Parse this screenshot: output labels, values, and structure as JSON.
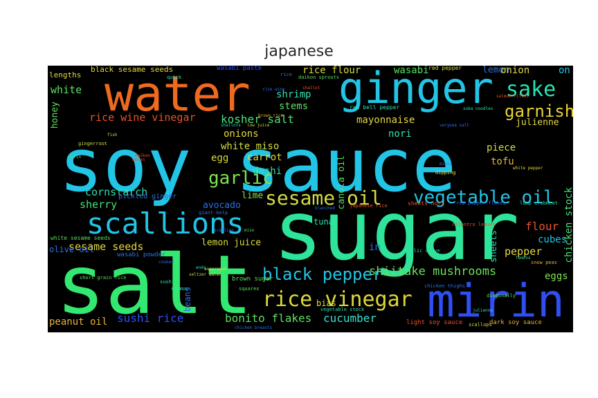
{
  "title": "japanese",
  "words": [
    {
      "text": "soy sauce",
      "color": "#22c5e6"
    },
    {
      "text": "sugar",
      "color": "#2ee39a"
    },
    {
      "text": "salt",
      "color": "#33e870"
    },
    {
      "text": "water",
      "color": "#ee6a1f"
    },
    {
      "text": "ginger",
      "color": "#22c5e6"
    },
    {
      "text": "mirin",
      "color": "#2f4ff2"
    },
    {
      "text": "scallions",
      "color": "#22c5e6"
    },
    {
      "text": "rice vinegar",
      "color": "#ddd93a"
    },
    {
      "text": "sesame oil",
      "color": "#d5dc3f"
    },
    {
      "text": "vegetable oil",
      "color": "#22c5e6"
    },
    {
      "text": "garlic",
      "color": "#7fe44f"
    },
    {
      "text": "black pepper",
      "color": "#22c5e6"
    },
    {
      "text": "sake",
      "color": "#25e6b2"
    },
    {
      "text": "garnish",
      "color": "#e8d437"
    },
    {
      "text": "shiitake mushrooms",
      "color": "#6de05a"
    },
    {
      "text": "bonito flakes",
      "color": "#5fe05e"
    },
    {
      "text": "cucumber",
      "color": "#36e1cf"
    },
    {
      "text": "sushi rice",
      "color": "#2f4ff2"
    },
    {
      "text": "rice wine vinegar",
      "color": "#e8542a"
    },
    {
      "text": "kosher salt",
      "color": "#4de07a"
    },
    {
      "text": "sesame seeds",
      "color": "#e6d93f"
    },
    {
      "text": "cornstarch",
      "color": "#2fe0b2"
    },
    {
      "text": "sherry",
      "color": "#4de07a"
    },
    {
      "text": "lemon juice",
      "color": "#d8dc3c"
    },
    {
      "text": "peanut oil",
      "color": "#e8b43a"
    },
    {
      "text": "avocado",
      "color": "#2f70e6"
    },
    {
      "text": "white miso",
      "color": "#d5dc3f"
    },
    {
      "text": "mayonnaise",
      "color": "#e6d93f"
    },
    {
      "text": "rice flour",
      "color": "#d5dc3f"
    },
    {
      "text": "wasabi",
      "color": "#59e05e"
    },
    {
      "text": "shrimp",
      "color": "#2fe0b2"
    },
    {
      "text": "stems",
      "color": "#5fe05e"
    },
    {
      "text": "white",
      "color": "#59e05e"
    },
    {
      "text": "honey",
      "color": "#5fe05e"
    },
    {
      "text": "onions",
      "color": "#e6d93f"
    },
    {
      "text": "carrot",
      "color": "#e6d93f"
    },
    {
      "text": "egg",
      "color": "#d5dc3f"
    },
    {
      "text": "dashi",
      "color": "#2fe0b2"
    },
    {
      "text": "lime",
      "color": "#7fe44f"
    },
    {
      "text": "nori",
      "color": "#2fe0b2"
    },
    {
      "text": "julienne",
      "color": "#e6d93f"
    },
    {
      "text": "lemon",
      "color": "#2f70e6"
    },
    {
      "text": "onion",
      "color": "#e6d93f"
    },
    {
      "text": "on",
      "color": "#22c5e6"
    },
    {
      "text": "piece",
      "color": "#d5dc3f"
    },
    {
      "text": "tofu",
      "color": "#e8b43a"
    },
    {
      "text": "flour",
      "color": "#e8542a"
    },
    {
      "text": "cubes",
      "color": "#22c5e6"
    },
    {
      "text": "pepper",
      "color": "#e6d93f"
    },
    {
      "text": "eggs",
      "color": "#7fe44f"
    },
    {
      "text": "chicken stock",
      "color": "#4de07a"
    },
    {
      "text": "sheets",
      "color": "#2fe0b2"
    },
    {
      "text": "canola oil",
      "color": "#59e05e"
    },
    {
      "text": "tuna",
      "color": "#2fe0b2"
    },
    {
      "text": "in",
      "color": "#2f70e6"
    },
    {
      "text": "bias",
      "color": "#e6d93f"
    },
    {
      "text": "beans",
      "color": "#2f70e6"
    },
    {
      "text": "olive oil",
      "color": "#2f70e6"
    },
    {
      "text": "lengths",
      "color": "#e6d93f"
    },
    {
      "text": "black sesame seeds",
      "color": "#e6d93f"
    },
    {
      "text": "wasabi paste",
      "color": "#2f4ff2"
    },
    {
      "text": "pickled ginger",
      "color": "#2f70e6"
    },
    {
      "text": "wasabi powder",
      "color": "#2f70e6"
    },
    {
      "text": "white sesame seeds",
      "color": "#59e05e"
    },
    {
      "text": "brown sugar",
      "color": "#5fe05e"
    },
    {
      "text": "red bell pepper",
      "color": "#2fe0b2"
    },
    {
      "text": "sheets nori",
      "color": "#e8542a"
    },
    {
      "text": "red pepper",
      "color": "#d5dc3f"
    },
    {
      "text": "light soy sauce",
      "color": "#e8542a"
    },
    {
      "text": "dark soy sauce",
      "color": "#e8b43a"
    },
    {
      "text": "daikon sprouts",
      "color": "#59e05e"
    },
    {
      "text": "cilantro leaves",
      "color": "#e8542a"
    },
    {
      "text": "red pepper flakes",
      "color": "#2f70e6"
    },
    {
      "text": "lump crabmeat",
      "color": "#2fe0b2"
    },
    {
      "text": "gingerroot",
      "color": "#d5dc3f"
    },
    {
      "text": "dipping",
      "color": "#e6d93f"
    },
    {
      "text": "garlic clove",
      "color": "#2fe0b2"
    },
    {
      "text": "short grain rice",
      "color": "#59e05e"
    },
    {
      "text": "snow peas",
      "color": "#e8b43a"
    },
    {
      "text": "chicken thighs",
      "color": "#2f70e6"
    },
    {
      "text": "diagonally",
      "color": "#59e05e"
    },
    {
      "text": "vegetable stock",
      "color": "#2fe0b2"
    },
    {
      "text": "scallops",
      "color": "#d5dc3f"
    },
    {
      "text": "japanese rice",
      "color": "#e8542a"
    },
    {
      "text": "giant kelp",
      "color": "#2f70e6"
    },
    {
      "text": "squares",
      "color": "#59e05e"
    },
    {
      "text": "salmon",
      "color": "#2fe0b2"
    },
    {
      "text": "sushi",
      "color": "#2fe0b2"
    },
    {
      "text": "asparagus",
      "color": "#e6d93f"
    },
    {
      "text": "cooked",
      "color": "#2f70e6"
    },
    {
      "text": "seltzer water",
      "color": "#d5dc3f"
    },
    {
      "text": "rice wine",
      "color": "#2f70e6"
    },
    {
      "text": "chicken breasts",
      "color": "#2f70e6"
    },
    {
      "text": "soba noodles",
      "color": "#2fe0b2"
    },
    {
      "text": "salmon fillet",
      "color": "#e8542a"
    },
    {
      "text": "sea salt",
      "color": "#2f70e6"
    },
    {
      "text": "very",
      "color": "#2f70e6"
    },
    {
      "text": "shallots",
      "color": "#2fe0b2"
    },
    {
      "text": "low juice",
      "color": "#d5dc3f"
    },
    {
      "text": "brown rice",
      "color": "#e8b43a"
    },
    {
      "text": "white pepper",
      "color": "#e6d93f"
    },
    {
      "text": "mirin",
      "color": "#59e05e"
    },
    {
      "text": "daikon",
      "color": "#e8542a"
    },
    {
      "text": "scallion",
      "color": "#2f70e6"
    },
    {
      "text": "miso",
      "color": "#59e05e"
    },
    {
      "text": "shallot",
      "color": "#e8542a"
    },
    {
      "text": "lemons",
      "color": "#2fe0b2"
    },
    {
      "text": "rice",
      "color": "#2f70e6"
    },
    {
      "text": "mince",
      "color": "#2f70e6"
    },
    {
      "text": "fish",
      "color": "#d5dc3f"
    },
    {
      "text": "quick",
      "color": "#2fe0b2"
    },
    {
      "text": "melon",
      "color": "#e8542a"
    },
    {
      "text": "ends",
      "color": "#2fe0b2"
    },
    {
      "text": "blanched",
      "color": "#2f70e6"
    },
    {
      "text": "julienne",
      "color": "#2fe0b2"
    }
  ]
}
